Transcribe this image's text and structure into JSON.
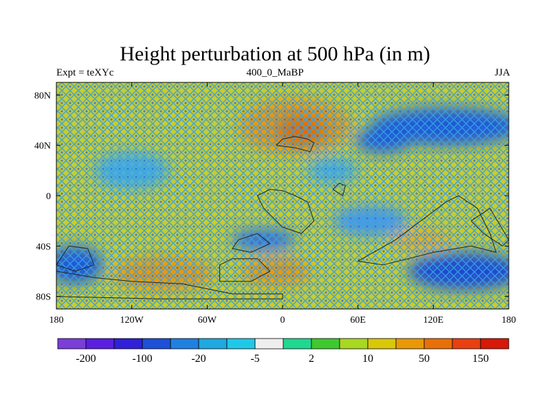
{
  "header": {
    "title": "Height perturbation at 500 hPa (in m)",
    "left": "Expt = teXYc",
    "center": "400_0_MaBP",
    "right": "JJA"
  },
  "map": {
    "lon_range": [
      -180,
      180
    ],
    "lat_range": [
      -90,
      90
    ],
    "lon_ticks": [
      {
        "value": -180,
        "label": "180"
      },
      {
        "value": -120,
        "label": "120W"
      },
      {
        "value": -60,
        "label": "60W"
      },
      {
        "value": 0,
        "label": "0"
      },
      {
        "value": 60,
        "label": "60E"
      },
      {
        "value": 120,
        "label": "120E"
      },
      {
        "value": 180,
        "label": "180"
      }
    ],
    "lat_ticks": [
      {
        "value": 80,
        "label": "80N"
      },
      {
        "value": 40,
        "label": "40N"
      },
      {
        "value": 0,
        "label": "0"
      },
      {
        "value": -40,
        "label": "40S"
      },
      {
        "value": -80,
        "label": "80S"
      }
    ],
    "background_color": "#c8cc2e",
    "field_patches": [
      {
        "lon": 10,
        "lat": 55,
        "rlon": 45,
        "rlat": 22,
        "color": "#e8980c"
      },
      {
        "lon": 15,
        "lat": 52,
        "rlon": 20,
        "rlat": 12,
        "color": "#e26a06"
      },
      {
        "lon": 130,
        "lat": 55,
        "rlon": 60,
        "rlat": 15,
        "color": "#1e5ad8"
      },
      {
        "lon": 80,
        "lat": 44,
        "rlon": 22,
        "rlat": 10,
        "color": "#1e5ad8"
      },
      {
        "lon": -15,
        "lat": -35,
        "rlon": 25,
        "rlat": 8,
        "color": "#2a6ae0"
      },
      {
        "lon": 70,
        "lat": -20,
        "rlon": 30,
        "rlat": 12,
        "color": "#4a9ae6"
      },
      {
        "lon": -95,
        "lat": -62,
        "rlon": 40,
        "rlat": 14,
        "color": "#e8980c"
      },
      {
        "lon": -5,
        "lat": -60,
        "rlon": 28,
        "rlat": 12,
        "color": "#e8980c"
      },
      {
        "lon": -165,
        "lat": -55,
        "rlon": 22,
        "rlat": 15,
        "color": "#1e5ad8"
      },
      {
        "lon": 145,
        "lat": -60,
        "rlon": 45,
        "rlat": 15,
        "color": "#1e4ad0"
      },
      {
        "lon": 110,
        "lat": -35,
        "rlon": 25,
        "rlat": 8,
        "color": "#e8a820"
      },
      {
        "lon": -120,
        "lat": 20,
        "rlon": 30,
        "rlat": 15,
        "color": "#4aaedc"
      },
      {
        "lon": 40,
        "lat": 20,
        "rlon": 20,
        "rlat": 10,
        "color": "#4aaedc"
      }
    ],
    "coastlines": [
      [
        [
          -5,
          40
        ],
        [
          0,
          45
        ],
        [
          10,
          47
        ],
        [
          20,
          45
        ],
        [
          25,
          42
        ],
        [
          22,
          35
        ],
        [
          10,
          38
        ],
        [
          -5,
          40
        ]
      ],
      [
        [
          -20,
          0
        ],
        [
          -10,
          5
        ],
        [
          0,
          4
        ],
        [
          10,
          0
        ],
        [
          20,
          -5
        ],
        [
          25,
          -20
        ],
        [
          15,
          -30
        ],
        [
          0,
          -25
        ],
        [
          -15,
          -10
        ],
        [
          -20,
          0
        ]
      ],
      [
        [
          -35,
          -35
        ],
        [
          -20,
          -30
        ],
        [
          -10,
          -38
        ],
        [
          -25,
          -45
        ],
        [
          -40,
          -42
        ],
        [
          -35,
          -35
        ]
      ],
      [
        [
          -50,
          -55
        ],
        [
          -40,
          -50
        ],
        [
          -20,
          -50
        ],
        [
          -10,
          -60
        ],
        [
          -25,
          -68
        ],
        [
          -50,
          -68
        ],
        [
          -50,
          -55
        ]
      ],
      [
        [
          -170,
          -40
        ],
        [
          -155,
          -42
        ],
        [
          -150,
          -55
        ],
        [
          -165,
          -60
        ],
        [
          -180,
          -55
        ],
        [
          -170,
          -40
        ]
      ],
      [
        [
          -180,
          -60
        ],
        [
          -150,
          -65
        ],
        [
          -120,
          -68
        ],
        [
          -80,
          -70
        ],
        [
          -40,
          -78
        ],
        [
          0,
          -78
        ],
        [
          0,
          -82
        ],
        [
          -100,
          -82
        ],
        [
          -180,
          -80
        ]
      ],
      [
        [
          90,
          -35
        ],
        [
          110,
          -20
        ],
        [
          130,
          -5
        ],
        [
          140,
          0
        ],
        [
          155,
          -10
        ],
        [
          165,
          -30
        ],
        [
          170,
          -45
        ],
        [
          150,
          -40
        ],
        [
          120,
          -45
        ],
        [
          100,
          -50
        ],
        [
          80,
          -55
        ],
        [
          60,
          -52
        ],
        [
          90,
          -35
        ]
      ],
      [
        [
          40,
          5
        ],
        [
          45,
          10
        ],
        [
          50,
          8
        ],
        [
          48,
          0
        ],
        [
          40,
          5
        ]
      ],
      [
        [
          150,
          -20
        ],
        [
          165,
          -10
        ],
        [
          180,
          -35
        ],
        [
          175,
          -40
        ],
        [
          160,
          -30
        ],
        [
          150,
          -20
        ]
      ]
    ]
  },
  "colorbar": {
    "colors": [
      "#7a3fd8",
      "#5a1fe0",
      "#3020d8",
      "#1e50d8",
      "#2080e0",
      "#20a8e0",
      "#20c8e8",
      "#eeeeee",
      "#20d890",
      "#40c830",
      "#a8d820",
      "#d8c808",
      "#e89808",
      "#e87008",
      "#e84010",
      "#d81808"
    ],
    "labels": [
      {
        "boundary": 1,
        "text": "-200"
      },
      {
        "boundary": 3,
        "text": "-100"
      },
      {
        "boundary": 5,
        "text": "-20"
      },
      {
        "boundary": 7,
        "text": "-5"
      },
      {
        "boundary": 9,
        "text": "2"
      },
      {
        "boundary": 11,
        "text": "10"
      },
      {
        "boundary": 13,
        "text": "50"
      },
      {
        "boundary": 15,
        "text": "150"
      }
    ]
  }
}
